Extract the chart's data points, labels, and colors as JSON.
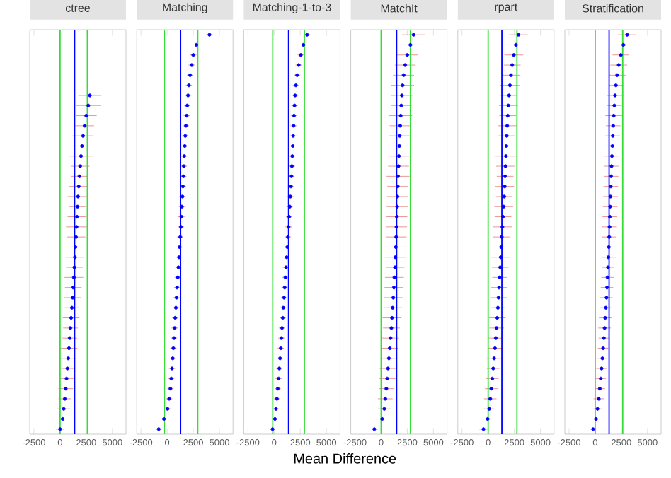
{
  "chart_data": [
    {
      "type": "scatter",
      "title": "ctree",
      "orientation": "horizontal",
      "color": "#0000ff",
      "tick_labels": "x",
      "xlim": [
        -2900,
        6300
      ],
      "xticks": [
        -2500,
        0,
        2500,
        5000
      ],
      "categories": [
        null,
        null,
        null,
        null,
        null,
        null,
        null,
        null,
        null,
        null,
        null,
        null,
        null,
        null,
        null,
        null,
        null,
        null,
        null,
        null,
        null,
        null,
        null,
        null,
        null,
        null,
        null,
        null,
        null,
        null,
        null,
        null,
        null,
        null,
        null,
        null,
        null,
        null,
        null,
        null
      ],
      "values": [
        null,
        null,
        null,
        null,
        null,
        null,
        2850,
        2700,
        2500,
        2350,
        2200,
        2100,
        2000,
        1920,
        1850,
        1780,
        1720,
        1670,
        1620,
        1570,
        1520,
        1470,
        1420,
        1370,
        1320,
        1260,
        1200,
        1130,
        1060,
        990,
        920,
        850,
        780,
        700,
        620,
        540,
        450,
        350,
        250,
        0
      ],
      "errors": [
        null,
        null,
        null,
        null,
        null,
        null,
        1100,
        1200,
        1000,
        900,
        1000,
        900,
        1100,
        900,
        800,
        900,
        1000,
        800,
        900,
        1000,
        900,
        800,
        900,
        800,
        900,
        800,
        800,
        700,
        800,
        700,
        700,
        800,
        700,
        600,
        700,
        700,
        600,
        600,
        500,
        400
      ],
      "ref_lines": [
        {
          "axis": "x",
          "value": 0,
          "color": "#33dd33"
        },
        {
          "axis": "x",
          "value": 1390,
          "color": "#0000ff"
        },
        {
          "axis": "x",
          "value": 2610,
          "color": "#33dd33"
        }
      ]
    },
    {
      "type": "scatter",
      "title": "Matching",
      "orientation": "horizontal",
      "color": "#0000ff",
      "tick_labels": "x",
      "xlim": [
        -2900,
        6300
      ],
      "xticks": [
        -2500,
        0,
        2500,
        5000
      ],
      "categories": [
        null,
        null,
        null,
        null,
        null,
        null,
        null,
        null,
        null,
        null,
        null,
        null,
        null,
        null,
        null,
        null,
        null,
        null,
        null,
        null,
        null,
        null,
        null,
        null,
        null,
        null,
        null,
        null,
        null,
        null,
        null,
        null,
        null,
        null,
        null,
        null,
        null,
        null,
        null,
        null
      ],
      "values": [
        4050,
        2800,
        2500,
        2350,
        2200,
        2080,
        2000,
        1930,
        1870,
        1800,
        1740,
        1690,
        1640,
        1600,
        1560,
        1510,
        1470,
        1420,
        1370,
        1320,
        1260,
        1200,
        1140,
        1080,
        1020,
        960,
        900,
        840,
        780,
        720,
        660,
        600,
        540,
        470,
        400,
        320,
        200,
        50,
        -300,
        -800
      ],
      "errors": [
        300,
        300,
        300,
        300,
        300,
        300,
        300,
        300,
        300,
        300,
        300,
        300,
        300,
        300,
        300,
        300,
        300,
        300,
        300,
        300,
        300,
        300,
        300,
        300,
        300,
        300,
        300,
        300,
        300,
        300,
        300,
        300,
        300,
        300,
        300,
        300,
        300,
        300,
        300,
        300
      ],
      "ref_lines": [
        {
          "axis": "x",
          "value": -260,
          "color": "#33dd33"
        },
        {
          "axis": "x",
          "value": 1290,
          "color": "#0000ff"
        },
        {
          "axis": "x",
          "value": 2930,
          "color": "#33dd33"
        }
      ]
    },
    {
      "type": "scatter",
      "title": "Matching-1-to-3",
      "xlabel": "Mean Difference",
      "orientation": "horizontal",
      "color": "#0000ff",
      "tick_labels": "x",
      "xlim": [
        -2900,
        6300
      ],
      "xticks": [
        -2500,
        0,
        2500,
        5000
      ],
      "categories": [
        null,
        null,
        null,
        null,
        null,
        null,
        null,
        null,
        null,
        null,
        null,
        null,
        null,
        null,
        null,
        null,
        null,
        null,
        null,
        null,
        null,
        null,
        null,
        null,
        null,
        null,
        null,
        null,
        null,
        null,
        null,
        null,
        null,
        null,
        null,
        null,
        null,
        null,
        null,
        null
      ],
      "values": [
        3150,
        2800,
        2550,
        2350,
        2200,
        2080,
        2000,
        1950,
        1900,
        1860,
        1820,
        1780,
        1740,
        1700,
        1660,
        1610,
        1560,
        1500,
        1440,
        1380,
        1320,
        1260,
        1200,
        1140,
        1080,
        1010,
        950,
        880,
        820,
        760,
        700,
        640,
        570,
        500,
        430,
        350,
        270,
        180,
        80,
        -150
      ],
      "errors": [
        300,
        300,
        300,
        300,
        300,
        300,
        300,
        300,
        300,
        300,
        300,
        300,
        300,
        300,
        300,
        300,
        300,
        300,
        300,
        300,
        300,
        300,
        300,
        300,
        300,
        300,
        300,
        300,
        300,
        300,
        300,
        300,
        300,
        300,
        300,
        300,
        300,
        300,
        300,
        300
      ],
      "ref_lines": [
        {
          "axis": "x",
          "value": -130,
          "color": "#33dd33"
        },
        {
          "axis": "x",
          "value": 1380,
          "color": "#0000ff"
        },
        {
          "axis": "x",
          "value": 2890,
          "color": "#33dd33"
        }
      ]
    },
    {
      "type": "scatter",
      "title": "MatchIt",
      "orientation": "horizontal",
      "color": "#0000ff",
      "tick_labels": "x",
      "xlim": [
        -2900,
        6300
      ],
      "xticks": [
        -2500,
        0,
        2500,
        5000
      ],
      "categories": [
        null,
        null,
        null,
        null,
        null,
        null,
        null,
        null,
        null,
        null,
        null,
        null,
        null,
        null,
        null,
        null,
        null,
        null,
        null,
        null,
        null,
        null,
        null,
        null,
        null,
        null,
        null,
        null,
        null,
        null,
        null,
        null,
        null,
        null,
        null,
        null,
        null,
        null,
        null,
        null
      ],
      "values": [
        3100,
        2800,
        2500,
        2300,
        2150,
        2050,
        1980,
        1920,
        1870,
        1820,
        1780,
        1740,
        1700,
        1660,
        1620,
        1590,
        1560,
        1530,
        1500,
        1470,
        1440,
        1400,
        1360,
        1320,
        1270,
        1220,
        1160,
        1100,
        1040,
        980,
        900,
        820,
        740,
        660,
        580,
        500,
        400,
        300,
        100,
        -650
      ],
      "errors": [
        1100,
        1100,
        1000,
        1000,
        1000,
        1100,
        1000,
        1000,
        1100,
        1000,
        1000,
        1100,
        1000,
        1000,
        1100,
        1000,
        1000,
        1000,
        1000,
        1000,
        1000,
        1000,
        1000,
        900,
        900,
        900,
        900,
        900,
        900,
        800,
        800,
        800,
        800,
        800,
        800,
        700,
        700,
        600,
        500,
        300
      ],
      "ref_lines": [
        {
          "axis": "x",
          "value": 0,
          "color": "#33dd33"
        },
        {
          "axis": "x",
          "value": 1480,
          "color": "#0000ff"
        },
        {
          "axis": "x",
          "value": 2800,
          "color": "#33dd33"
        }
      ]
    },
    {
      "type": "scatter",
      "title": "rpart",
      "orientation": "horizontal",
      "color": "#0000ff",
      "tick_labels": "x",
      "xlim": [
        -2900,
        6300
      ],
      "xticks": [
        -2500,
        0,
        2500,
        5000
      ],
      "categories": [
        null,
        null,
        null,
        null,
        null,
        null,
        null,
        null,
        null,
        null,
        null,
        null,
        null,
        null,
        null,
        null,
        null,
        null,
        null,
        null,
        null,
        null,
        null,
        null,
        null,
        null,
        null,
        null,
        null,
        null,
        null,
        null,
        null,
        null,
        null,
        null,
        null,
        null,
        null,
        null
      ],
      "values": [
        2900,
        2650,
        2450,
        2300,
        2180,
        2080,
        2000,
        1930,
        1870,
        1820,
        1780,
        1740,
        1700,
        1660,
        1620,
        1580,
        1540,
        1480,
        1420,
        1360,
        1300,
        1250,
        1200,
        1150,
        1100,
        1050,
        990,
        930,
        870,
        800,
        730,
        650,
        570,
        480,
        400,
        300,
        200,
        100,
        -50,
        -450
      ],
      "errors": [
        900,
        1000,
        900,
        800,
        900,
        900,
        800,
        900,
        800,
        900,
        800,
        900,
        1000,
        900,
        800,
        900,
        800,
        900,
        800,
        900,
        800,
        800,
        900,
        800,
        700,
        800,
        800,
        700,
        800,
        700,
        700,
        700,
        700,
        600,
        600,
        600,
        600,
        500,
        500,
        400
      ],
      "ref_lines": [
        {
          "axis": "x",
          "value": 0,
          "color": "#33dd33"
        },
        {
          "axis": "x",
          "value": 1310,
          "color": "#0000ff"
        },
        {
          "axis": "x",
          "value": 2750,
          "color": "#33dd33"
        }
      ]
    },
    {
      "type": "scatter",
      "title": "Stratification",
      "orientation": "horizontal",
      "color": "#0000ff",
      "tick_labels": "x",
      "xlim": [
        -2900,
        6300
      ],
      "xticks": [
        -2500,
        0,
        2500,
        5000
      ],
      "categories": [
        null,
        null,
        null,
        null,
        null,
        null,
        null,
        null,
        null,
        null,
        null,
        null,
        null,
        null,
        null,
        null,
        null,
        null,
        null,
        null,
        null,
        null,
        null,
        null,
        null,
        null,
        null,
        null,
        null,
        null,
        null,
        null,
        null,
        null,
        null,
        null,
        null,
        null,
        null,
        null
      ],
      "values": [
        3050,
        2700,
        2450,
        2250,
        2100,
        1980,
        1900,
        1830,
        1770,
        1720,
        1680,
        1640,
        1600,
        1560,
        1520,
        1490,
        1460,
        1430,
        1400,
        1370,
        1340,
        1300,
        1260,
        1220,
        1180,
        1130,
        1080,
        1020,
        960,
        900,
        830,
        760,
        690,
        610,
        530,
        440,
        340,
        220,
        80,
        -200
      ],
      "errors": [
        900,
        800,
        800,
        800,
        800,
        700,
        800,
        700,
        800,
        700,
        700,
        800,
        700,
        700,
        700,
        700,
        700,
        700,
        700,
        700,
        700,
        700,
        700,
        600,
        600,
        600,
        600,
        600,
        600,
        600,
        500,
        500,
        500,
        500,
        500,
        500,
        500,
        400,
        400,
        300
      ],
      "ref_lines": [
        {
          "axis": "x",
          "value": 0,
          "color": "#33dd33"
        },
        {
          "axis": "x",
          "value": 1330,
          "color": "#0000ff"
        },
        {
          "axis": "x",
          "value": 2630,
          "color": "#33dd33"
        }
      ]
    }
  ]
}
